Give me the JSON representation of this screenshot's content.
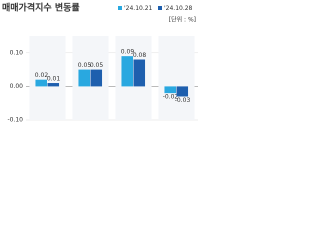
{
  "chart_data": {
    "type": "bar",
    "title": "매매가격지수 변동률",
    "unit_label": "[단위 : %]",
    "categories": [
      null,
      null,
      null,
      null
    ],
    "series": [
      {
        "name": "'24.10.21",
        "color": "#29a8e0",
        "values": [
          0.02,
          0.05,
          0.09,
          -0.02
        ],
        "value_labels": [
          "0.02",
          "0.05",
          "0.09",
          "-0.02"
        ]
      },
      {
        "name": "'24.10.28",
        "color": "#1e5fae",
        "values": [
          0.01,
          0.05,
          0.08,
          -0.03
        ],
        "value_labels": [
          "0.01",
          "0.05",
          "0.08",
          "-0.03"
        ]
      }
    ],
    "ylim": [
      -0.1,
      0.15
    ],
    "yticks": [
      {
        "value": -0.1,
        "label": "-0.10"
      },
      {
        "value": 0,
        "label": "0.00"
      },
      {
        "value": 0.1,
        "label": "0.10"
      }
    ],
    "grid": true
  }
}
